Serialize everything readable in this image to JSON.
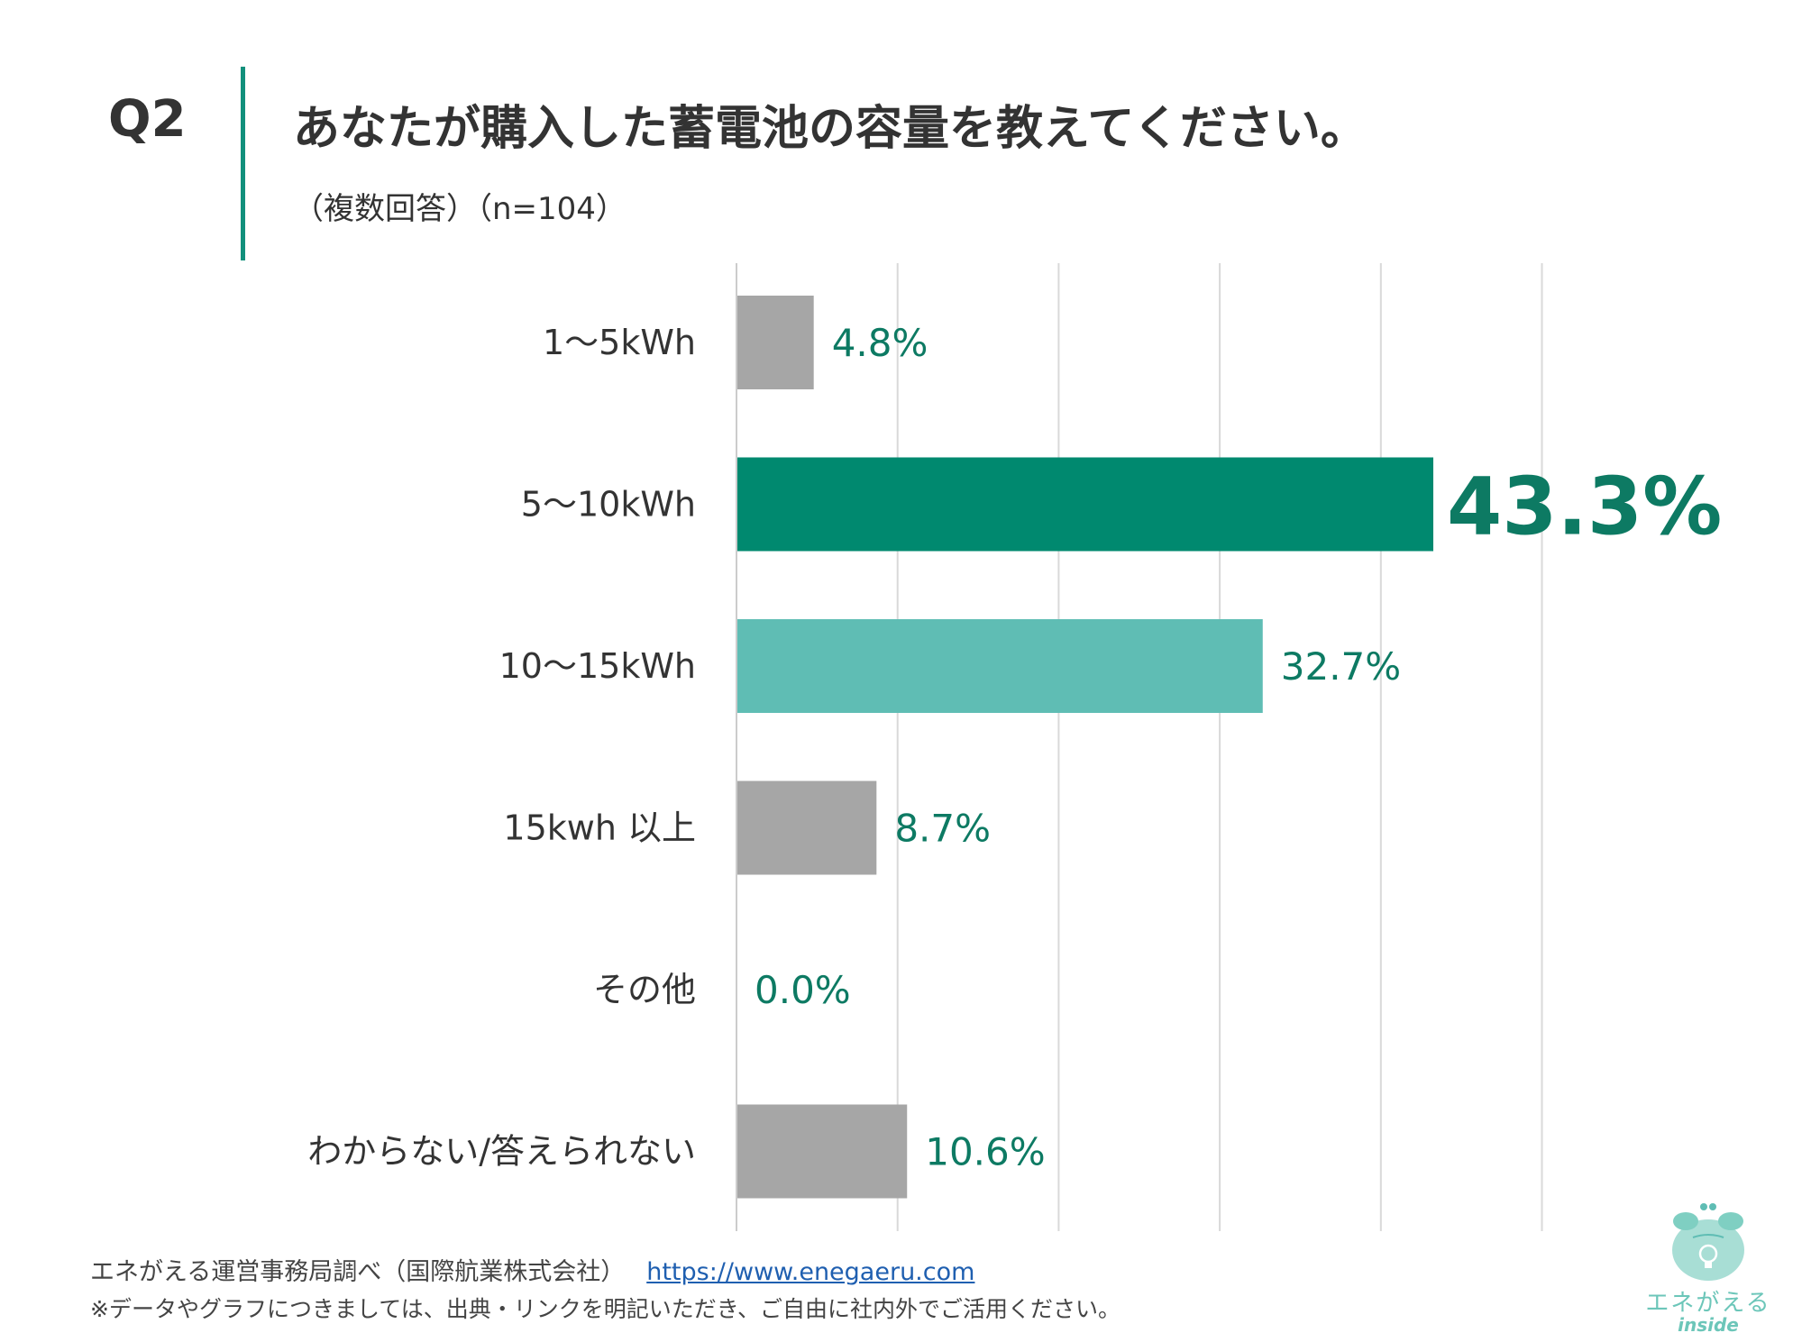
{
  "header": {
    "q_label": "Q2",
    "title": "あなたが購入した蓄電池の容量を教えてください。",
    "subtitle": "（複数回答）（n=104）"
  },
  "colors": {
    "accent": "#12907c",
    "highlight": "#00896f",
    "secondary": "#5fbdb4",
    "neutral": "#a6a6a6",
    "label_text": "#0d7a63",
    "grid": "#d9d9d9"
  },
  "chart_data": {
    "type": "bar",
    "orientation": "horizontal",
    "categories": [
      "1〜5kWh",
      "5〜10kWh",
      "10〜15kWh",
      "15kwh 以上",
      "その他",
      "わからない/答えられない"
    ],
    "values": [
      4.8,
      43.3,
      32.7,
      8.7,
      0.0,
      10.6
    ],
    "value_labels": [
      "4.8%",
      "43.3%",
      "32.7%",
      "8.7%",
      "0.0%",
      "10.6%"
    ],
    "bar_colors": [
      "#a6a6a6",
      "#00896f",
      "#5fbdb4",
      "#a6a6a6",
      "#a6a6a6",
      "#a6a6a6"
    ],
    "highlight_index": 1,
    "xlim": [
      0,
      50
    ],
    "grid": true,
    "gridline_count": 6
  },
  "footer": {
    "source": "エネがえる運営事務局調べ（国際航業株式会社）",
    "link": "https://www.enegaeru.com",
    "note": "※データやグラフにつきましては、出典・リンクを明記いただき、ご自由に社内外でご活用ください。"
  },
  "logo": {
    "text": "エネがえる",
    "sub": "inside"
  }
}
